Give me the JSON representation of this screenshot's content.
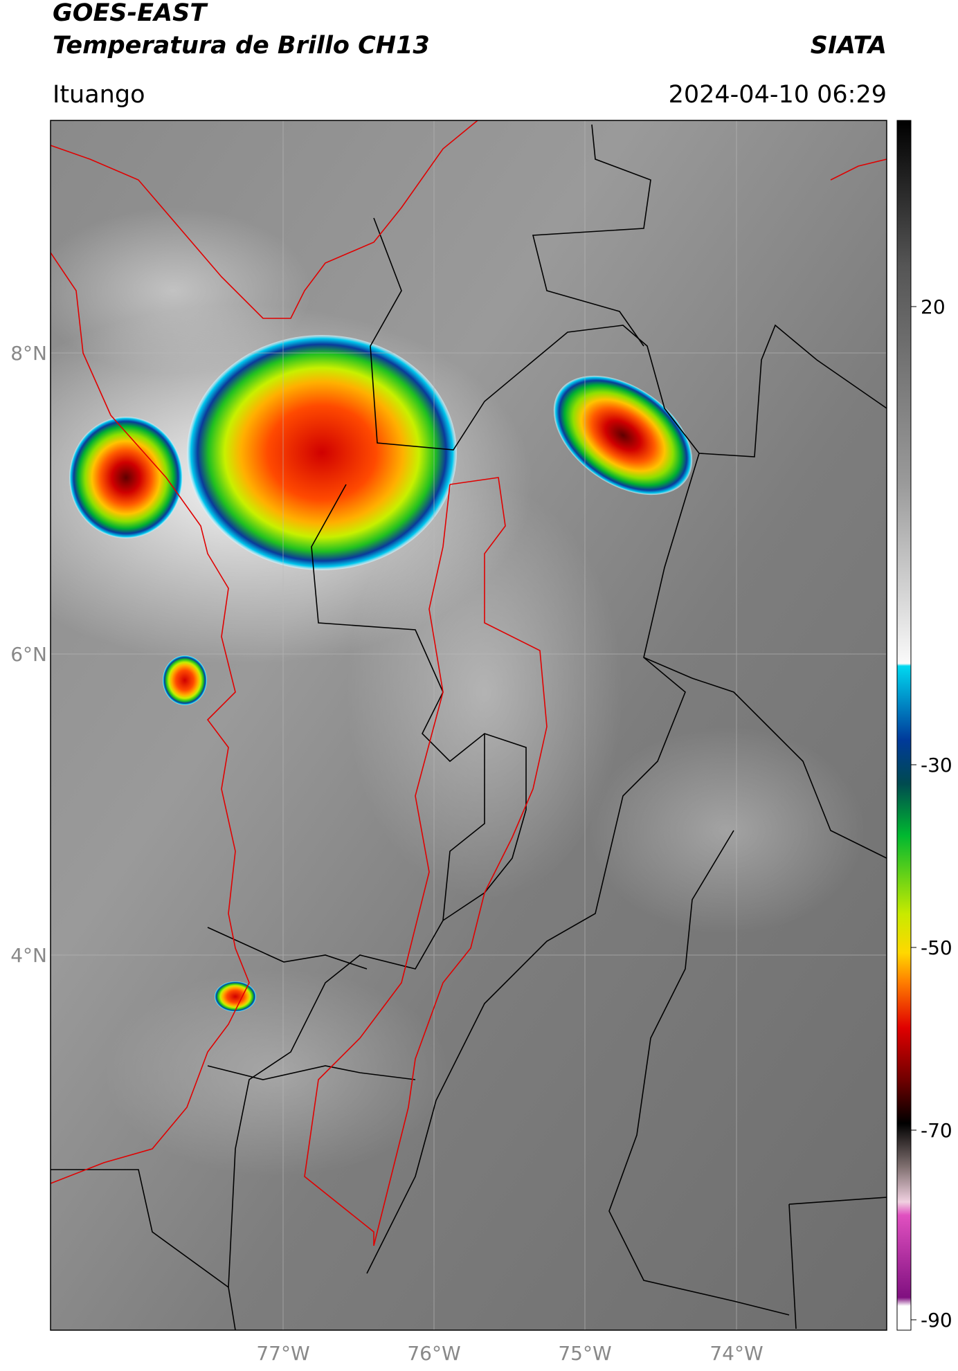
{
  "header": {
    "title": "GOES-EAST",
    "subtitle": "Temperatura de Brillo CH13",
    "brand": "SIATA",
    "location": "Ituango",
    "datetime": "2024-04-10 06:29"
  },
  "map": {
    "lat_labels": [
      "8°N",
      "6°N",
      "4°N"
    ],
    "lon_labels": [
      "77°W",
      "76°W",
      "75°W",
      "74°W"
    ]
  },
  "colorbar": {
    "ticks": [
      20,
      -30,
      -50,
      -70,
      -90
    ]
  }
}
